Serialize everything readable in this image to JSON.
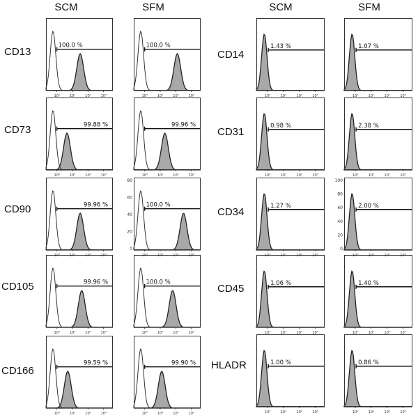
{
  "figure": {
    "left_headers": [
      "SCM",
      "SFM"
    ],
    "right_headers": [
      "SCM",
      "SFM"
    ]
  },
  "chart_data": [
    {
      "type": "histogram",
      "marker": "CD13",
      "condition": "SCM",
      "gate_label": "100.0 %",
      "gate_value": 100.0,
      "positive_peak_log": 1.5,
      "yticks": []
    },
    {
      "type": "histogram",
      "marker": "CD13",
      "condition": "SFM",
      "gate_label": "100.0 %",
      "gate_value": 100.0,
      "positive_peak_log": 2.1,
      "yticks": []
    },
    {
      "type": "histogram",
      "marker": "CD73",
      "condition": "SCM",
      "gate_label": "99.88 %",
      "gate_value": 99.88,
      "positive_peak_log": 0.65,
      "yticks": []
    },
    {
      "type": "histogram",
      "marker": "CD73",
      "condition": "SFM",
      "gate_label": "99.96 %",
      "gate_value": 99.96,
      "positive_peak_log": 1.3,
      "yticks": []
    },
    {
      "type": "histogram",
      "marker": "CD90",
      "condition": "SCM",
      "gate_label": "99.96 %",
      "gate_value": 99.96,
      "positive_peak_log": 1.5,
      "yticks": []
    },
    {
      "type": "histogram",
      "marker": "CD90",
      "condition": "SFM",
      "gate_label": "100.0 %",
      "gate_value": 100.0,
      "positive_peak_log": 2.5,
      "yticks": [
        "80",
        "60",
        "40",
        "20",
        "0"
      ]
    },
    {
      "type": "histogram",
      "marker": "CD105",
      "condition": "SCM",
      "gate_label": "99.96 %",
      "gate_value": 99.96,
      "positive_peak_log": 1.6,
      "yticks": []
    },
    {
      "type": "histogram",
      "marker": "CD105",
      "condition": "SFM",
      "gate_label": "100.0 %",
      "gate_value": 100.0,
      "positive_peak_log": 1.8,
      "yticks": []
    },
    {
      "type": "histogram",
      "marker": "CD166",
      "condition": "SCM",
      "gate_label": "99.59 %",
      "gate_value": 99.59,
      "positive_peak_log": 0.7,
      "yticks": []
    },
    {
      "type": "histogram",
      "marker": "CD166",
      "condition": "SFM",
      "gate_label": "99.90 %",
      "gate_value": 99.9,
      "positive_peak_log": 1.1,
      "yticks": []
    },
    {
      "type": "histogram",
      "marker": "CD14",
      "condition": "SCM",
      "gate_label": "1.43 %",
      "gate_value": 1.43,
      "yticks": []
    },
    {
      "type": "histogram",
      "marker": "CD14",
      "condition": "SFM",
      "gate_label": "1.07 %",
      "gate_value": 1.07,
      "yticks": []
    },
    {
      "type": "histogram",
      "marker": "CD31",
      "condition": "SCM",
      "gate_label": "0.98 %",
      "gate_value": 0.98,
      "yticks": []
    },
    {
      "type": "histogram",
      "marker": "CD31",
      "condition": "SFM",
      "gate_label": "2.38 %",
      "gate_value": 2.38,
      "yticks": []
    },
    {
      "type": "histogram",
      "marker": "CD34",
      "condition": "SCM",
      "gate_label": "1.27 %",
      "gate_value": 1.27,
      "yticks": []
    },
    {
      "type": "histogram",
      "marker": "CD34",
      "condition": "SFM",
      "gate_label": "2.00 %",
      "gate_value": 2.0,
      "yticks": [
        "100",
        "80",
        "60",
        "40",
        "20",
        "0"
      ]
    },
    {
      "type": "histogram",
      "marker": "CD45",
      "condition": "SCM",
      "gate_label": "1.06 %",
      "gate_value": 1.06,
      "yticks": []
    },
    {
      "type": "histogram",
      "marker": "CD45",
      "condition": "SFM",
      "gate_label": "1.40 %",
      "gate_value": 1.4,
      "yticks": []
    },
    {
      "type": "histogram",
      "marker": "HLADR",
      "condition": "SCM",
      "gate_label": "1.00 %",
      "gate_value": 1.0,
      "yticks": []
    },
    {
      "type": "histogram",
      "marker": "HLADR",
      "condition": "SFM",
      "gate_label": "0.86 %",
      "gate_value": 0.86,
      "yticks": []
    }
  ],
  "xticks": [
    "10⁰",
    "10¹",
    "10²",
    "10³"
  ]
}
